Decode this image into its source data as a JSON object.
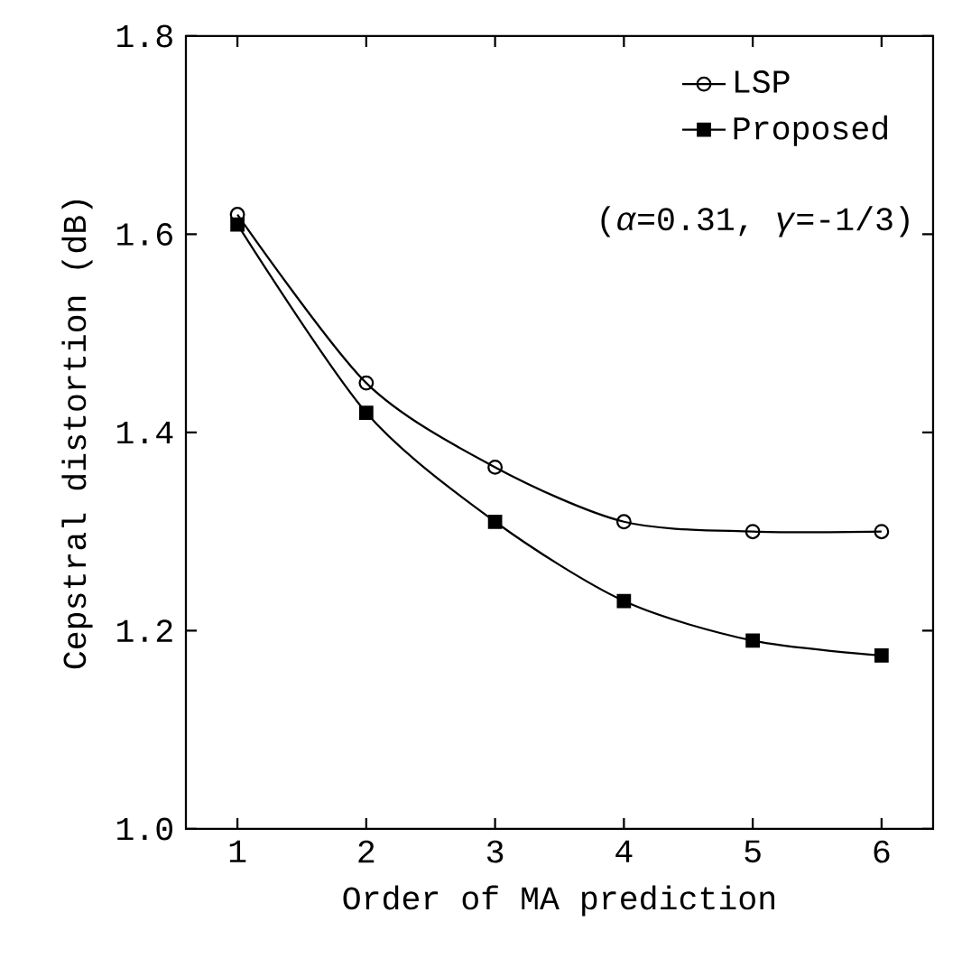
{
  "chart_data": {
    "type": "line",
    "xlabel": "Order of MA prediction",
    "ylabel": "Cepstral distortion (dB)",
    "x": [
      1,
      2,
      3,
      4,
      5,
      6
    ],
    "series": [
      {
        "name": "LSP",
        "color": "#000000",
        "marker": "circle",
        "values": [
          1.62,
          1.45,
          1.365,
          1.31,
          1.3,
          1.3
        ]
      },
      {
        "name": "Proposed",
        "color": "#000000",
        "marker": "square",
        "values": [
          1.61,
          1.42,
          1.31,
          1.23,
          1.19,
          1.175
        ]
      }
    ],
    "xlim": [
      0.6,
      6.4
    ],
    "ylim": [
      1.0,
      1.8
    ],
    "xticks": [
      1,
      2,
      3,
      4,
      5,
      6
    ],
    "yticks": [
      {
        "value": 1.0,
        "label": "1.0"
      },
      {
        "value": 1.2,
        "label": "1.2"
      },
      {
        "value": 1.4,
        "label": "1.4"
      },
      {
        "value": 1.6,
        "label": "1.6"
      },
      {
        "value": 1.8,
        "label": "1.8"
      }
    ],
    "legend": "top right",
    "grid": false,
    "line_style": "solid",
    "annotations": [
      "(*α*=0.31, *γ*=-1/3)"
    ]
  }
}
